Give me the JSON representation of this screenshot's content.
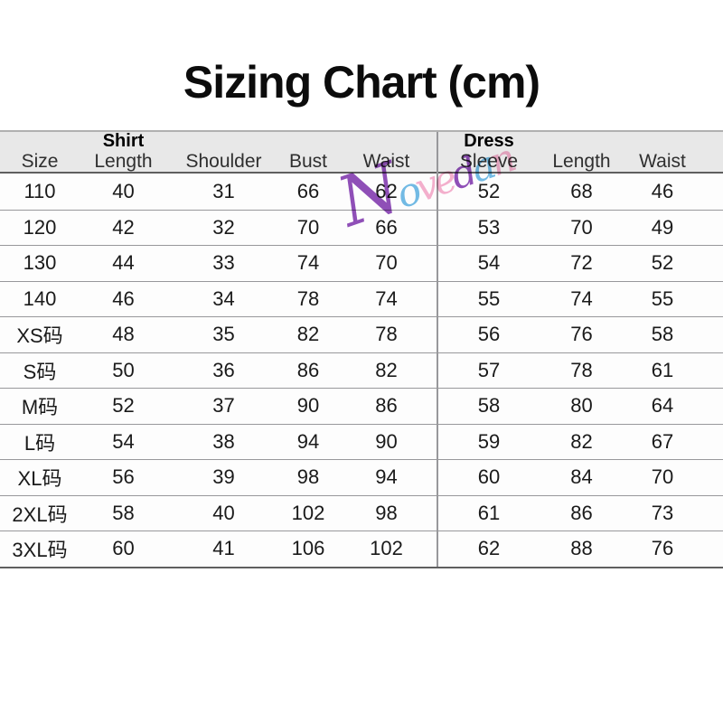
{
  "title": "Sizing Chart (cm)",
  "ui": {
    "header": {
      "size": "Size",
      "shirt_group": "Shirt",
      "shirt_length": "Length",
      "shoulder": "Shoulder",
      "bust": "Bust",
      "shirt_waist": "Waist",
      "dress_group": "Dress",
      "dress_sleeve": "Sleeve",
      "dress_length": "Length",
      "dress_waist": "Waist"
    }
  },
  "watermark": {
    "text": "Novedan",
    "letters": [
      {
        "char": "N",
        "color": "#8136b0"
      },
      {
        "char": "o",
        "color": "#5fb3e3"
      },
      {
        "char": "v",
        "color": "#f4a6c8"
      },
      {
        "char": "e",
        "color": "#f4a6c8"
      },
      {
        "char": "d",
        "color": "#8136b0"
      },
      {
        "char": "a",
        "color": "#5fb3e3"
      },
      {
        "char": "n",
        "color": "#f4a6c8"
      }
    ]
  },
  "chart_data": {
    "type": "table",
    "title": "Sizing Chart (cm)",
    "columns": [
      "Size",
      "Shirt Length",
      "Shoulder",
      "Bust",
      "Waist",
      "Dress Sleeve",
      "Length",
      "Waist"
    ],
    "rows": [
      [
        "110",
        40,
        31,
        66,
        62,
        52,
        68,
        46
      ],
      [
        "120",
        42,
        32,
        70,
        66,
        53,
        70,
        49
      ],
      [
        "130",
        44,
        33,
        74,
        70,
        54,
        72,
        52
      ],
      [
        "140",
        46,
        34,
        78,
        74,
        55,
        74,
        55
      ],
      [
        "XS码",
        48,
        35,
        82,
        78,
        56,
        76,
        58
      ],
      [
        "S码",
        50,
        36,
        86,
        82,
        57,
        78,
        61
      ],
      [
        "M码",
        52,
        37,
        90,
        86,
        58,
        80,
        64
      ],
      [
        "L码",
        54,
        38,
        94,
        90,
        59,
        82,
        67
      ],
      [
        "XL码",
        56,
        39,
        98,
        94,
        60,
        84,
        70
      ],
      [
        "2XL码",
        58,
        40,
        102,
        98,
        61,
        86,
        73
      ],
      [
        "3XL码",
        60,
        41,
        106,
        102,
        62,
        88,
        76
      ]
    ]
  },
  "colors": {
    "header_bg": "#e8e8e8",
    "row_bg": "#fdfdfd",
    "line_light": "#b0b0b0",
    "line_mid": "#98989b",
    "line_dark": "#5f5f5f",
    "title_color": "#0c0c0c",
    "body_text": "#1a1a1a",
    "header_text": "#2f2f2f",
    "watermark_purple": "#8136b0",
    "watermark_blue": "#5fb3e3",
    "watermark_pink": "#f4a6c8"
  }
}
